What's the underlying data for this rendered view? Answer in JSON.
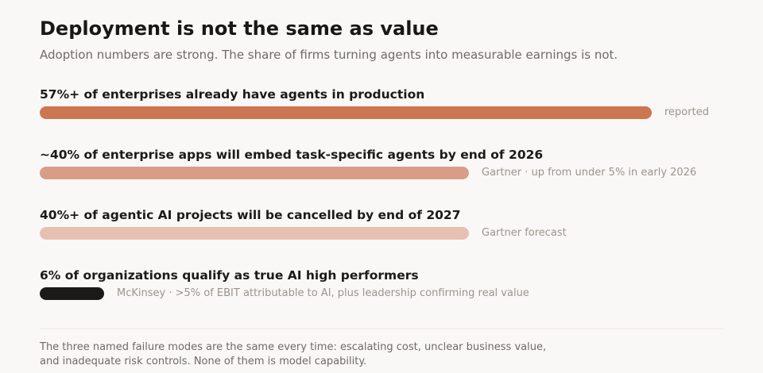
{
  "header": {
    "title": "Deployment is not the same as value",
    "subtitle": "Adoption numbers are strong. The share of firms turning agents into measurable earnings is not."
  },
  "chart_data": {
    "type": "bar",
    "orientation": "horizontal",
    "xlim": [
      0,
      57
    ],
    "categories": [
      "57%+ of enterprises already have agents in production",
      "~40% of enterprise apps will embed task-specific agents by end of 2026",
      "40%+ of agentic AI projects will be cancelled by end of 2027",
      "6% of organizations qualify as true AI high performers"
    ],
    "values": [
      57,
      40,
      40,
      6
    ],
    "notes": [
      "reported",
      "Gartner · up from under 5% in early 2026",
      "Gartner forecast",
      "McKinsey · >5% of EBIT attributable to AI, plus leadership confirming real value"
    ],
    "colors": [
      "#cc7752",
      "#d99d87",
      "#e6c1b2",
      "#1c1a18"
    ],
    "grid": false,
    "legend": "none"
  },
  "footer": {
    "line1": "The three named failure modes are the same every time: escalating cost, unclear business value,",
    "line2": "and inadequate risk controls. None of them is model capability."
  }
}
